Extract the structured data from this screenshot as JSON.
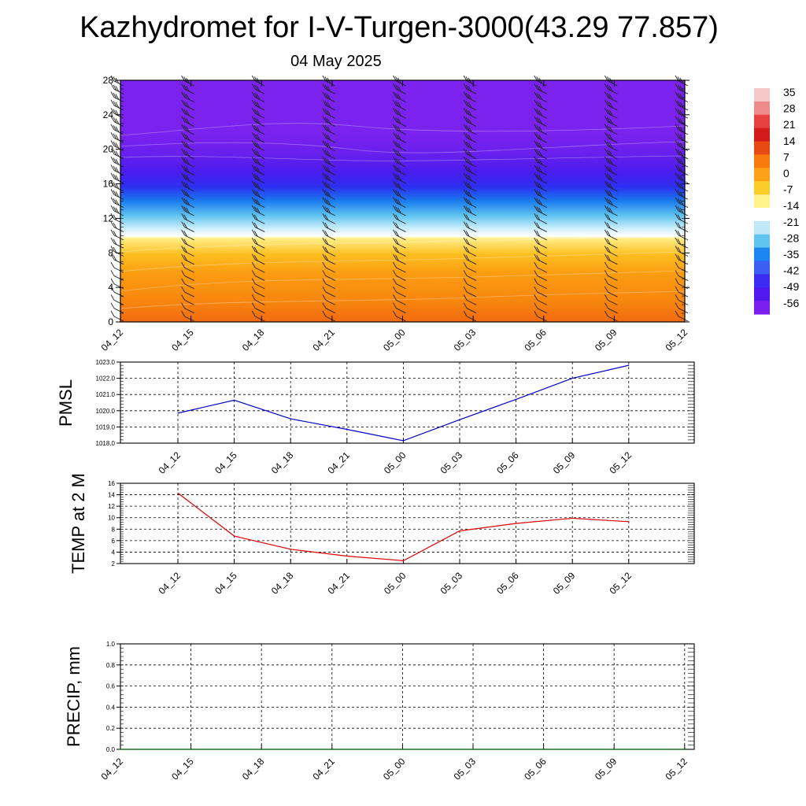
{
  "header": {
    "title": "Kazhydromet for I-V-Turgen-3000(43.29 77.857)",
    "date": "04 May 2025"
  },
  "time_labels": [
    "04_12",
    "04_15",
    "04_18",
    "04_21",
    "05_00",
    "05_03",
    "05_06",
    "05_09",
    "05_12"
  ],
  "chart_data": [
    {
      "id": "temperature-cross-section",
      "type": "heatmap",
      "x": [
        "04_12",
        "04_15",
        "04_18",
        "04_21",
        "05_00",
        "05_03",
        "05_06",
        "05_09",
        "05_12"
      ],
      "y_ticks": [
        0,
        4,
        8,
        12,
        16,
        20,
        24,
        28
      ],
      "ylim": [
        0,
        28
      ],
      "colorbar": {
        "labels": [
          35,
          28,
          21,
          14,
          7,
          0,
          -7,
          -14,
          -21,
          -28,
          -35,
          -42,
          -49,
          -56
        ],
        "colors": [
          "#f6c9c9",
          "#ef8a8a",
          "#e64040",
          "#d41a1a",
          "#e84a14",
          "#f77a0c",
          "#fba314",
          "#fdcc2a",
          "#fff28c",
          "#ffffff",
          "#bde8f8",
          "#5fc4f0",
          "#1d86f0",
          "#3b5ff2",
          "#3a2cf0",
          "#5218ee",
          "#7a1fef"
        ]
      },
      "wind_barbs": "on"
    },
    {
      "id": "pmsl",
      "type": "line",
      "ylabel": "PMSL",
      "x": [
        "04_12",
        "04_15",
        "04_18",
        "04_21",
        "05_00",
        "05_03",
        "05_06",
        "05_09",
        "05_12"
      ],
      "y_ticks": [
        "1018.0",
        "1019.0",
        "1020.0",
        "1021.0",
        "1022.0",
        "1023.0"
      ],
      "ylim": [
        1018,
        1023
      ],
      "series": [
        {
          "values": [
            1019.85,
            1020.65,
            1019.5,
            1018.85,
            1018.15,
            1019.45,
            1020.7,
            1022.0,
            1022.8
          ],
          "color": "#0000cc"
        }
      ],
      "grid": "dashed"
    },
    {
      "id": "temp-2m",
      "type": "line",
      "ylabel": "TEMP at 2 M",
      "x": [
        "04_12",
        "04_15",
        "04_18",
        "04_21",
        "05_00",
        "05_03",
        "05_06",
        "05_09",
        "05_12"
      ],
      "y_ticks": [
        "2",
        "4",
        "6",
        "8",
        "10",
        "12",
        "14",
        "16"
      ],
      "ylim": [
        2,
        16
      ],
      "series": [
        {
          "values": [
            14.3,
            6.8,
            4.5,
            3.3,
            2.5,
            7.7,
            9.0,
            9.9,
            9.3
          ],
          "color": "#dd0000"
        }
      ],
      "grid": "dashed"
    },
    {
      "id": "precip",
      "type": "line",
      "ylabel": "PRECIP, mm",
      "x": [
        "04_12",
        "04_15",
        "04_18",
        "04_21",
        "05_00",
        "05_03",
        "05_06",
        "05_09",
        "05_12"
      ],
      "y_ticks": [
        "0.0",
        "0.2",
        "0.4",
        "0.6",
        "0.8",
        "1.0"
      ],
      "ylim": [
        0,
        1
      ],
      "series": [
        {
          "values": [
            0,
            0,
            0,
            0,
            0,
            0,
            0,
            0,
            0
          ],
          "color": "#006600"
        }
      ],
      "grid": "dashed"
    }
  ]
}
